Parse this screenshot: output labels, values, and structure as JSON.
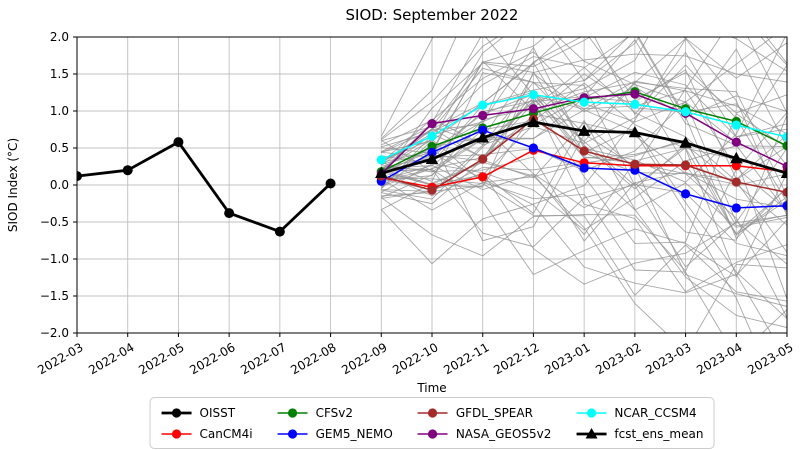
{
  "title": "SIOD: September 2022",
  "axes": {
    "xlabel": "Time",
    "ylabel": "SIOD Index (°C)",
    "x_ticks": [
      "2022-03",
      "2022-04",
      "2022-05",
      "2022-06",
      "2022-07",
      "2022-08",
      "2022-09",
      "2022-10",
      "2022-11",
      "2022-12",
      "2023-01",
      "2023-02",
      "2023-03",
      "2023-04",
      "2023-05"
    ],
    "y_ticks": [
      "2.0",
      "1.5",
      "1.0",
      "0.5",
      "0.0",
      "−0.5",
      "−1.0",
      "−1.5",
      "−2.0"
    ],
    "y_tick_values": [
      2.0,
      1.5,
      1.0,
      0.5,
      0.0,
      -0.5,
      -1.0,
      -1.5,
      -2.0
    ],
    "ylim": [
      -2.0,
      2.0
    ],
    "grid": true
  },
  "chart_data": {
    "type": "line",
    "title": "SIOD: September 2022",
    "xlabel": "Time",
    "ylabel": "SIOD Index (°C)",
    "ylim": [
      -2.0,
      2.0
    ],
    "x_categories": [
      "2022-03",
      "2022-04",
      "2022-05",
      "2022-06",
      "2022-07",
      "2022-08",
      "2022-09",
      "2022-10",
      "2022-11",
      "2022-12",
      "2023-01",
      "2023-02",
      "2023-03",
      "2023-04",
      "2023-05"
    ],
    "observation": {
      "name": "OISST",
      "color": "#000000",
      "marker": "circle",
      "x": [
        "2022-03",
        "2022-04",
        "2022-05",
        "2022-06",
        "2022-07",
        "2022-08"
      ],
      "values": [
        0.12,
        0.2,
        0.58,
        -0.38,
        -0.63,
        0.02
      ]
    },
    "forecast_x": [
      "2022-09",
      "2022-10",
      "2022-11",
      "2022-12",
      "2023-01",
      "2023-02",
      "2023-03",
      "2023-04",
      "2023-05"
    ],
    "series": [
      {
        "name": "CanCM4i",
        "color": "#ff0000",
        "marker": "circle",
        "values": [
          0.1,
          -0.03,
          0.11,
          0.47,
          0.3,
          0.26,
          0.26,
          0.26,
          0.18
        ]
      },
      {
        "name": "CFSv2",
        "color": "#008000",
        "marker": "circle",
        "values": [
          0.18,
          0.52,
          0.77,
          0.97,
          1.16,
          1.26,
          1.03,
          0.86,
          0.53
        ]
      },
      {
        "name": "GEM5_NEMO",
        "color": "#0000ff",
        "marker": "circle",
        "values": [
          0.05,
          0.44,
          0.74,
          0.5,
          0.23,
          0.2,
          -0.12,
          -0.31,
          -0.28
        ]
      },
      {
        "name": "GFDL_SPEAR",
        "color": "#a52a2a",
        "marker": "circle",
        "values": [
          0.12,
          -0.07,
          0.35,
          0.89,
          0.46,
          0.28,
          0.27,
          0.04,
          -0.1
        ]
      },
      {
        "name": "NASA_GEOS5v2",
        "color": "#800080",
        "marker": "circle",
        "values": [
          0.15,
          0.83,
          0.94,
          1.03,
          1.18,
          1.23,
          0.97,
          0.58,
          0.25
        ]
      },
      {
        "name": "NCAR_CCSM4",
        "color": "#00ffff",
        "marker": "circle",
        "values": [
          0.34,
          0.66,
          1.08,
          1.22,
          1.12,
          1.09,
          0.99,
          0.81,
          0.65
        ]
      },
      {
        "name": "fcst_ens_mean",
        "color": "#000000",
        "marker": "triangle",
        "values": [
          0.16,
          0.35,
          0.64,
          0.85,
          0.73,
          0.71,
          0.57,
          0.36,
          0.16
        ]
      }
    ],
    "ensemble_members": {
      "description": "individual forecast ensemble member traces (unlabeled thin gray spaghetti lines) spanning 2022-09 to 2023-05, spreading from ~0.15±0.3 at start to roughly the full -2..2 axis range",
      "color": "#919191",
      "approx_count": 58
    },
    "grid": true,
    "legend_position": "bottom"
  },
  "legend": {
    "items": [
      {
        "label": "OISST",
        "color": "#000000",
        "marker": "circle",
        "thick": true
      },
      {
        "label": "CanCM4i",
        "color": "#ff0000",
        "marker": "circle",
        "thick": false
      },
      {
        "label": "CFSv2",
        "color": "#008000",
        "marker": "circle",
        "thick": false
      },
      {
        "label": "GEM5_NEMO",
        "color": "#0000ff",
        "marker": "circle",
        "thick": false
      },
      {
        "label": "GFDL_SPEAR",
        "color": "#a52a2a",
        "marker": "circle",
        "thick": false
      },
      {
        "label": "NASA_GEOS5v2",
        "color": "#800080",
        "marker": "circle",
        "thick": false
      },
      {
        "label": "NCAR_CCSM4",
        "color": "#00ffff",
        "marker": "circle",
        "thick": false
      },
      {
        "label": "fcst_ens_mean",
        "color": "#000000",
        "marker": "triangle",
        "thick": true
      }
    ]
  },
  "colors": {
    "grid_line": "#c0c0c0",
    "axis_spine": "#000000",
    "ensemble_gray": "#919191",
    "background": "#ffffff"
  }
}
